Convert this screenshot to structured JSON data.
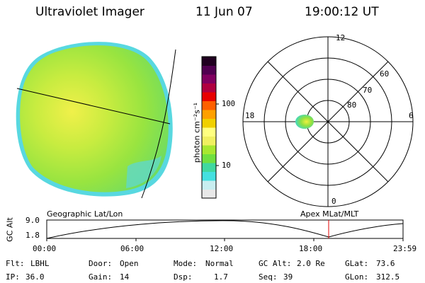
{
  "header": {
    "title": "Ultraviolet Imager",
    "date": "11 Jun 07",
    "time": "19:00:12 UT"
  },
  "colorbar": {
    "unit_label": "photon cm⁻²s⁻¹",
    "ticks": [
      "100",
      "10"
    ],
    "colors": [
      "#e8e8e8",
      "#c8eef0",
      "#44e0e0",
      "#40d8a0",
      "#70e040",
      "#a8e830",
      "#f0f060",
      "#ffff80",
      "#f0d000",
      "#ffa000",
      "#ff6000",
      "#e80000",
      "#b00040",
      "#800060",
      "#500050",
      "#200020"
    ]
  },
  "polar": {
    "hour_labels": {
      "top": "12",
      "left": "18",
      "right": "6",
      "bottom": "0"
    },
    "lat_labels": [
      "60",
      "70",
      "80"
    ]
  },
  "timeline": {
    "left_label": "Geographic Lat/Lon",
    "right_label": "Apex MLat/MLT",
    "axis_label": "GC Alt",
    "y_ticks": [
      "9.0",
      "1.8"
    ],
    "x_ticks": [
      "00:00",
      "06:00",
      "12:00",
      "18:00",
      "23:59"
    ],
    "current_time_marker": "19:00"
  },
  "status": {
    "flt_label": "Flt:",
    "flt_value": "LBHL",
    "ip_label": "IP:",
    "ip_value": "36.0",
    "door_label": "Door:",
    "door_value": "Open",
    "gain_label": "Gain:",
    "gain_value": "14",
    "mode_label": "Mode:",
    "mode_value": "Normal",
    "dsp_label": "Dsp:",
    "dsp_value": "1.7",
    "gcalt_label": "GC Alt:",
    "gcalt_value": "2.0 Re",
    "seq_label": "Seq:",
    "seq_value": "39",
    "glat_label": "GLat:",
    "glat_value": "73.6",
    "glon_label": "GLon:",
    "glon_value": "312.5"
  }
}
